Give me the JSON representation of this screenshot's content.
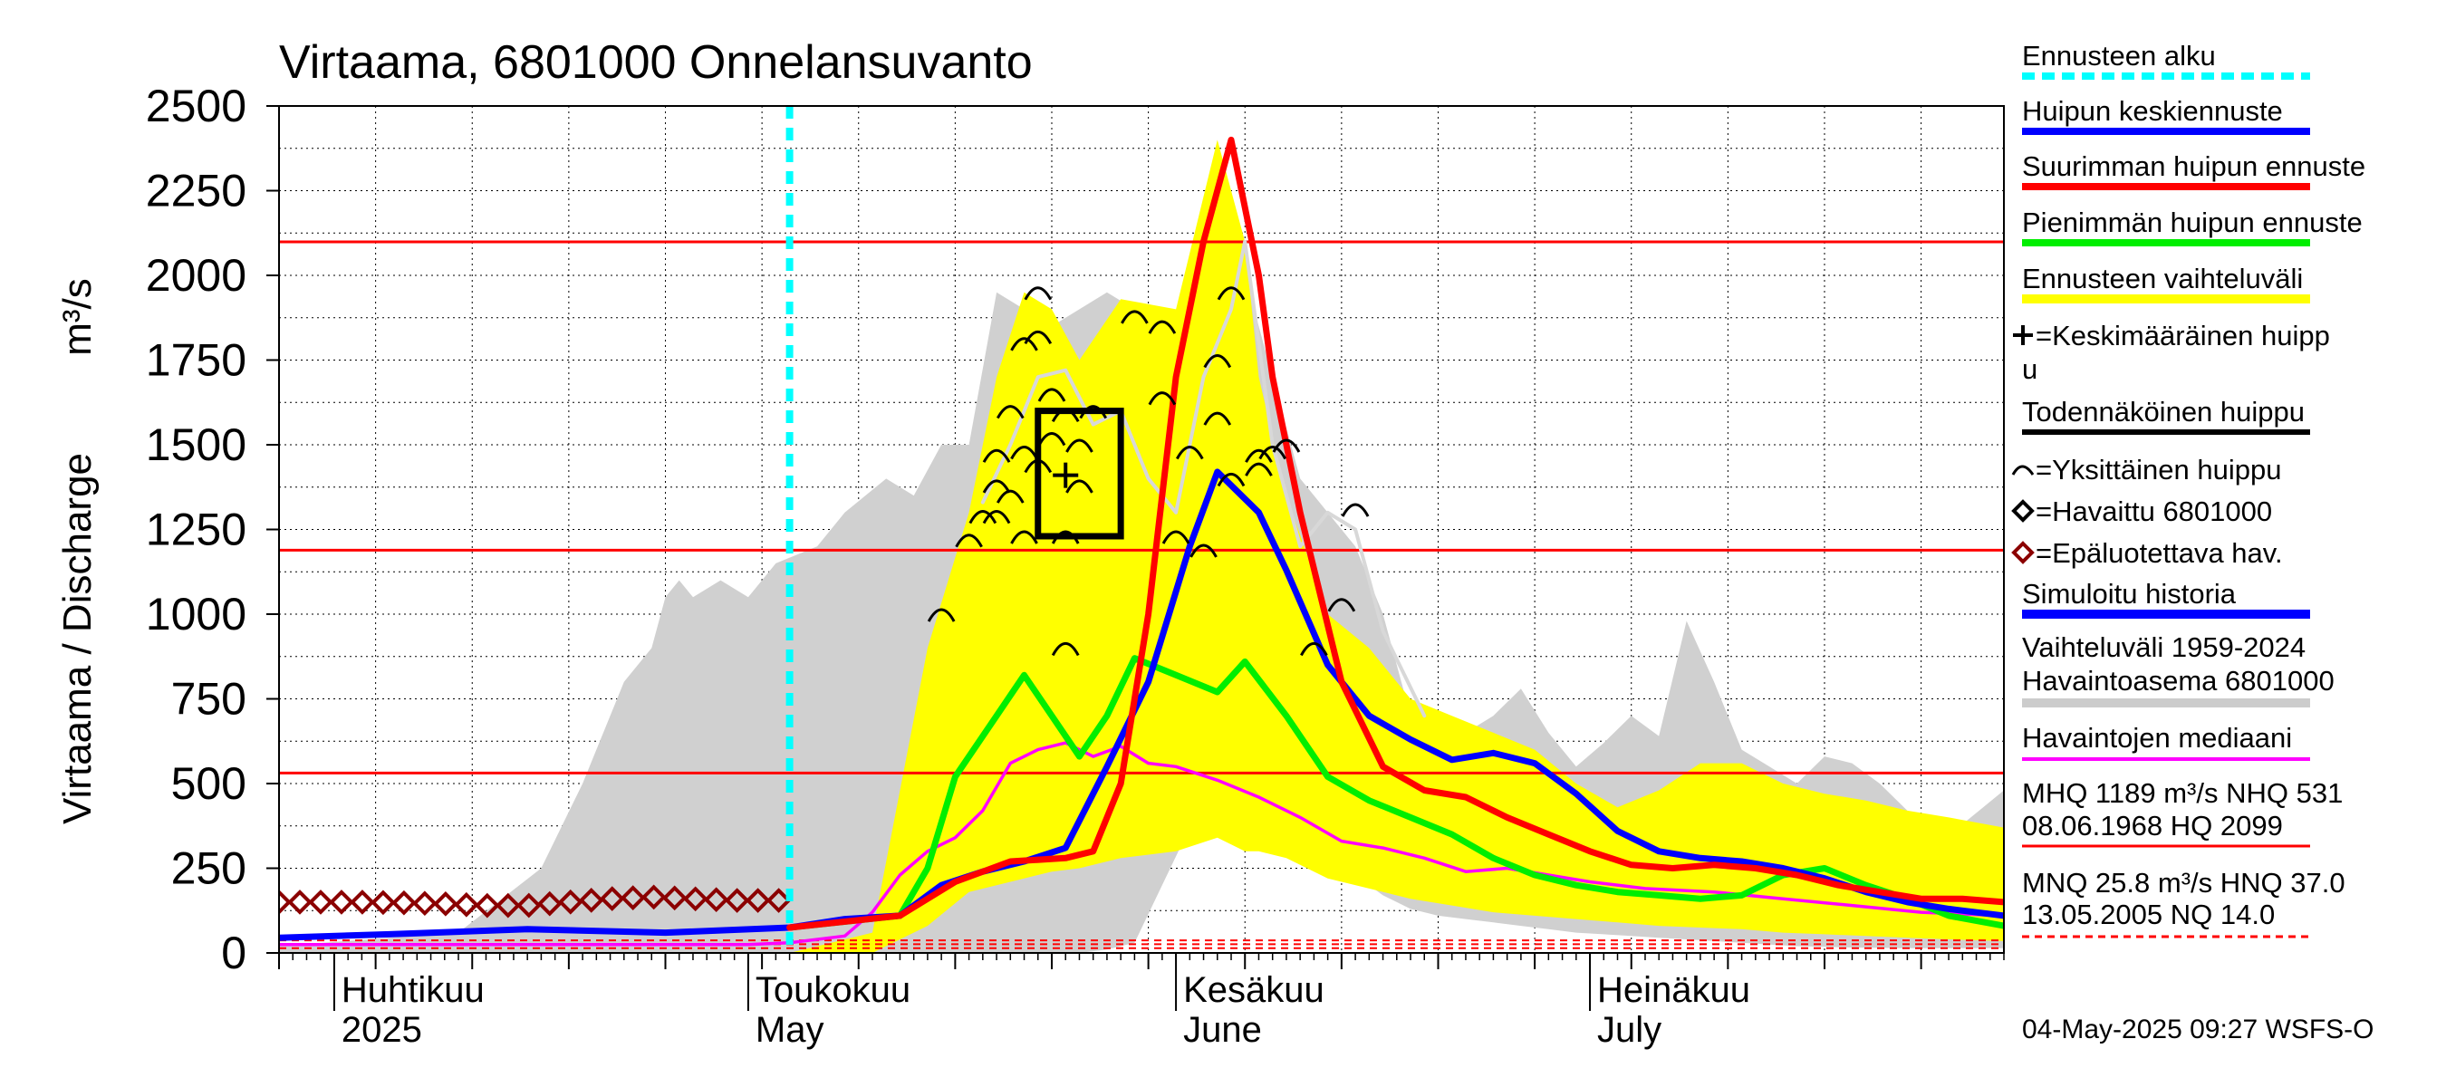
{
  "chart_data": {
    "type": "area",
    "title": "Virtaama, 6801000 Onnelansuvanto",
    "ylabel": "Virtaama / Discharge",
    "yunit": "m³/s",
    "ylim": [
      0,
      2500
    ],
    "yticks": [
      0,
      250,
      500,
      750,
      1000,
      1250,
      1500,
      1750,
      2000,
      2250,
      2500
    ],
    "xlim": [
      "2025-03-28",
      "2025-07-31"
    ],
    "x_month_ticks": [
      {
        "date": "2025-04-01",
        "label": "Huhtikuu",
        "label2": "2025"
      },
      {
        "date": "2025-05-01",
        "label": "Toukokuu",
        "label2": "May"
      },
      {
        "date": "2025-06-01",
        "label": "Kesäkuu",
        "label2": "June"
      },
      {
        "date": "2025-07-01",
        "label": "Heinäkuu",
        "label2": "July"
      }
    ],
    "grid": true,
    "forecast_start": "2025-05-04",
    "reference_lines": [
      {
        "name": "HQ",
        "value": 2099,
        "color": "#ff0000"
      },
      {
        "name": "MHQ",
        "value": 1189,
        "color": "#ff0000"
      },
      {
        "name": "NHQ",
        "value": 531,
        "color": "#ff0000"
      },
      {
        "name": "HNQ",
        "value": 37.0,
        "color": "#ff0000"
      },
      {
        "name": "MNQ",
        "value": 25.8,
        "color": "#ff0000"
      },
      {
        "name": "NQ",
        "value": 14.0,
        "color": "#ff0000"
      }
    ],
    "history_band": {
      "color": "#d0d0d0",
      "x": [
        "2025-03-28",
        "2025-04-10",
        "2025-04-16",
        "2025-04-19",
        "2025-04-22",
        "2025-04-24",
        "2025-04-25",
        "2025-04-26",
        "2025-04-27",
        "2025-04-29",
        "2025-05-01",
        "2025-05-03",
        "2025-05-06",
        "2025-05-08",
        "2025-05-11",
        "2025-05-13",
        "2025-05-15",
        "2025-05-17",
        "2025-05-19",
        "2025-05-21",
        "2025-05-23",
        "2025-05-25",
        "2025-05-27",
        "2025-05-29",
        "2025-05-31",
        "2025-06-02",
        "2025-06-04",
        "2025-06-06",
        "2025-06-08",
        "2025-06-10",
        "2025-06-12",
        "2025-06-14",
        "2025-06-16",
        "2025-06-18",
        "2025-06-20",
        "2025-06-22",
        "2025-06-24",
        "2025-06-26",
        "2025-06-28",
        "2025-06-30",
        "2025-07-02",
        "2025-07-04",
        "2025-07-06",
        "2025-07-08",
        "2025-07-10",
        "2025-07-12",
        "2025-07-14",
        "2025-07-16",
        "2025-07-18",
        "2025-07-20",
        "2025-07-22",
        "2025-07-24",
        "2025-07-26",
        "2025-07-28",
        "2025-07-31"
      ],
      "upper": [
        20,
        60,
        250,
        500,
        800,
        900,
        1050,
        1100,
        1050,
        1100,
        1050,
        1150,
        1200,
        1300,
        1400,
        1350,
        1500,
        1500,
        1950,
        1900,
        1850,
        1900,
        1950,
        1900,
        1850,
        1850,
        1900,
        2000,
        1700,
        1400,
        1300,
        1200,
        1000,
        700,
        650,
        650,
        700,
        780,
        650,
        550,
        620,
        700,
        640,
        980,
        800,
        600,
        550,
        500,
        580,
        560,
        500,
        420,
        300,
        380,
        480
      ],
      "lower": [
        0,
        0,
        0,
        0,
        0,
        0,
        0,
        0,
        0,
        0,
        0,
        0,
        0,
        0,
        0,
        0,
        0,
        0,
        0,
        0,
        0,
        0,
        10,
        30,
        200,
        370,
        450,
        500,
        480,
        380,
        300,
        230,
        170,
        130,
        110,
        100,
        90,
        80,
        70,
        60,
        55,
        50,
        45,
        40,
        35,
        30,
        25,
        20,
        18,
        16,
        15,
        14,
        14,
        14,
        14
      ]
    },
    "forecast_band": {
      "color": "#ffff00",
      "x": [
        "2025-05-04",
        "2025-05-10",
        "2025-05-14",
        "2025-05-17",
        "2025-05-19",
        "2025-05-21",
        "2025-05-23",
        "2025-05-25",
        "2025-05-28",
        "2025-06-01",
        "2025-06-04",
        "2025-06-06",
        "2025-06-07",
        "2025-06-09",
        "2025-06-12",
        "2025-06-15",
        "2025-06-18",
        "2025-06-21",
        "2025-06-24",
        "2025-06-27",
        "2025-06-30",
        "2025-07-03",
        "2025-07-06",
        "2025-07-09",
        "2025-07-12",
        "2025-07-15",
        "2025-07-18",
        "2025-07-21",
        "2025-07-24",
        "2025-07-27",
        "2025-07-31"
      ],
      "upper": [
        0,
        60,
        900,
        1300,
        1700,
        1950,
        1900,
        1750,
        1930,
        1900,
        2400,
        2100,
        1700,
        1350,
        1000,
        900,
        750,
        700,
        650,
        600,
        500,
        430,
        480,
        560,
        560,
        500,
        470,
        450,
        420,
        400,
        370
      ],
      "lower": [
        0,
        0,
        80,
        180,
        200,
        220,
        240,
        250,
        280,
        300,
        340,
        300,
        300,
        280,
        220,
        190,
        160,
        140,
        120,
        110,
        100,
        90,
        80,
        75,
        70,
        60,
        55,
        50,
        45,
        40,
        35
      ]
    },
    "series": [
      {
        "name": "Huipun keskiennuste",
        "color": "#0000ff",
        "width": 7,
        "x": [
          "2025-03-28",
          "2025-04-05",
          "2025-04-15",
          "2025-04-25",
          "2025-05-04",
          "2025-05-08",
          "2025-05-12",
          "2025-05-15",
          "2025-05-18",
          "2025-05-21",
          "2025-05-24",
          "2025-05-27",
          "2025-05-30",
          "2025-06-02",
          "2025-06-04",
          "2025-06-07",
          "2025-06-09",
          "2025-06-12",
          "2025-06-15",
          "2025-06-18",
          "2025-06-21",
          "2025-06-24",
          "2025-06-27",
          "2025-06-30",
          "2025-07-03",
          "2025-07-06",
          "2025-07-09",
          "2025-07-12",
          "2025-07-15",
          "2025-07-18",
          "2025-07-21",
          "2025-07-24",
          "2025-07-27",
          "2025-07-31"
        ],
        "y": [
          45,
          55,
          70,
          60,
          75,
          100,
          110,
          200,
          240,
          270,
          310,
          550,
          800,
          1200,
          1420,
          1300,
          1130,
          850,
          700,
          630,
          570,
          590,
          560,
          470,
          360,
          300,
          280,
          270,
          250,
          220,
          180,
          150,
          130,
          110
        ]
      },
      {
        "name": "Suurimman huipun ennuste",
        "color": "#ff0000",
        "width": 7,
        "x": [
          "2025-05-04",
          "2025-05-12",
          "2025-05-16",
          "2025-05-20",
          "2025-05-24",
          "2025-05-26",
          "2025-05-28",
          "2025-05-30",
          "2025-06-01",
          "2025-06-03",
          "2025-06-05",
          "2025-06-07",
          "2025-06-08",
          "2025-06-10",
          "2025-06-13",
          "2025-06-16",
          "2025-06-19",
          "2025-06-22",
          "2025-06-25",
          "2025-06-28",
          "2025-07-01",
          "2025-07-04",
          "2025-07-07",
          "2025-07-10",
          "2025-07-13",
          "2025-07-16",
          "2025-07-19",
          "2025-07-22",
          "2025-07-25",
          "2025-07-28",
          "2025-07-31"
        ],
        "y": [
          75,
          110,
          210,
          270,
          280,
          300,
          500,
          1000,
          1700,
          2100,
          2400,
          2000,
          1700,
          1300,
          800,
          550,
          480,
          460,
          400,
          350,
          300,
          260,
          250,
          260,
          250,
          230,
          200,
          180,
          160,
          160,
          150
        ]
      },
      {
        "name": "Pienimmän huipun ennuste",
        "color": "#00ee00",
        "width": 7,
        "x": [
          "2025-05-04",
          "2025-05-12",
          "2025-05-14",
          "2025-05-16",
          "2025-05-19",
          "2025-05-21",
          "2025-05-23",
          "2025-05-25",
          "2025-05-27",
          "2025-05-29",
          "2025-06-01",
          "2025-06-04",
          "2025-06-06",
          "2025-06-09",
          "2025-06-12",
          "2025-06-15",
          "2025-06-18",
          "2025-06-21",
          "2025-06-24",
          "2025-06-27",
          "2025-06-30",
          "2025-07-03",
          "2025-07-06",
          "2025-07-09",
          "2025-07-12",
          "2025-07-15",
          "2025-07-18",
          "2025-07-21",
          "2025-07-24",
          "2025-07-27",
          "2025-07-31"
        ],
        "y": [
          75,
          110,
          250,
          520,
          700,
          820,
          700,
          580,
          700,
          870,
          820,
          770,
          860,
          700,
          520,
          450,
          400,
          350,
          280,
          230,
          200,
          180,
          170,
          160,
          170,
          230,
          250,
          200,
          160,
          110,
          80
        ]
      },
      {
        "name": "Havaintojen mediaani",
        "color": "#ff00ff",
        "width": 3.5,
        "x": [
          "2025-03-28",
          "2025-04-20",
          "2025-05-01",
          "2025-05-04",
          "2025-05-08",
          "2025-05-10",
          "2025-05-12",
          "2025-05-14",
          "2025-05-16",
          "2025-05-18",
          "2025-05-20",
          "2025-05-22",
          "2025-05-24",
          "2025-05-26",
          "2025-05-28",
          "2025-05-30",
          "2025-06-01",
          "2025-06-04",
          "2025-06-07",
          "2025-06-10",
          "2025-06-13",
          "2025-06-16",
          "2025-06-19",
          "2025-06-22",
          "2025-06-25",
          "2025-06-28",
          "2025-07-01",
          "2025-07-05",
          "2025-07-10",
          "2025-07-15",
          "2025-07-20",
          "2025-07-25",
          "2025-07-31"
        ],
        "y": [
          25,
          25,
          25,
          30,
          50,
          120,
          230,
          300,
          340,
          420,
          560,
          600,
          620,
          580,
          610,
          560,
          550,
          510,
          460,
          400,
          330,
          310,
          280,
          240,
          250,
          230,
          210,
          190,
          180,
          160,
          140,
          120,
          110
        ]
      },
      {
        "name": "Ennusteen vaihteluväli (light)",
        "color": "#d8d8d8",
        "width": 4,
        "x": [
          "2025-05-18",
          "2025-05-20",
          "2025-05-22",
          "2025-05-24",
          "2025-05-26",
          "2025-05-28",
          "2025-05-30",
          "2025-06-01",
          "2025-06-03",
          "2025-06-05",
          "2025-06-06",
          "2025-06-08",
          "2025-06-10",
          "2025-06-12",
          "2025-06-14",
          "2025-06-16",
          "2025-06-19"
        ],
        "y": [
          1330,
          1500,
          1700,
          1720,
          1560,
          1600,
          1400,
          1300,
          1700,
          1900,
          2100,
          1500,
          1200,
          1300,
          1250,
          950,
          700
        ]
      }
    ],
    "observed": {
      "name": "Epäluotettava hav.",
      "color": "#8b0000",
      "x": [
        "2025-03-28",
        "2025-03-31",
        "2025-04-03",
        "2025-04-06",
        "2025-04-09",
        "2025-04-12",
        "2025-04-15",
        "2025-04-18",
        "2025-04-21",
        "2025-04-24",
        "2025-04-27",
        "2025-04-30",
        "2025-05-03"
      ],
      "y": [
        150,
        150,
        150,
        148,
        145,
        140,
        140,
        150,
        160,
        165,
        160,
        155,
        155
      ]
    },
    "single_peaks": {
      "name": "Yksittäinen huippu",
      "x": [
        "2025-05-15",
        "2025-05-17",
        "2025-05-18",
        "2025-05-19",
        "2025-05-19",
        "2025-05-19",
        "2025-05-20",
        "2025-05-20",
        "2025-05-21",
        "2025-05-21",
        "2025-05-21",
        "2025-05-22",
        "2025-05-22",
        "2025-05-22",
        "2025-05-23",
        "2025-05-23",
        "2025-05-24",
        "2025-05-24",
        "2025-05-24",
        "2025-05-25",
        "2025-05-25",
        "2025-05-26",
        "2025-05-29",
        "2025-05-31",
        "2025-05-31",
        "2025-06-01",
        "2025-06-02",
        "2025-06-03",
        "2025-06-04",
        "2025-06-04",
        "2025-06-05",
        "2025-06-05",
        "2025-06-07",
        "2025-06-07",
        "2025-06-08",
        "2025-06-09",
        "2025-06-11",
        "2025-06-13",
        "2025-06-14"
      ],
      "y": [
        1000,
        1220,
        1290,
        1380,
        1470,
        1290,
        1600,
        1350,
        1800,
        1480,
        1230,
        1820,
        1950,
        1440,
        1650,
        1520,
        1590,
        1230,
        900,
        1500,
        1380,
        1600,
        1880,
        1850,
        1640,
        1230,
        1480,
        1190,
        1750,
        1580,
        1950,
        1400,
        1470,
        1430,
        1480,
        1500,
        900,
        1030,
        1310
      ]
    },
    "mean_peak": {
      "name": "Keskimääräinen huippu",
      "x": "2025-05-24",
      "y": 1410
    },
    "probable_peak_box": {
      "name": "Todennäköinen huippu",
      "x0": "2025-05-22",
      "x1": "2025-05-28",
      "y0": 1230,
      "y1": 1600
    },
    "legend_position": "right"
  },
  "legend": {
    "forecast_start": {
      "label": "Ennusteen alku",
      "color": "#00ffff"
    },
    "mean_forecast": {
      "label": "Huipun keskiennuste",
      "color": "#0000ff"
    },
    "max_forecast": {
      "label": "Suurimman huipun ennuste",
      "color": "#ff0000"
    },
    "min_forecast": {
      "label": "Pienimmän huipun ennuste",
      "color": "#00ee00"
    },
    "forecast_range": {
      "label": "Ennusteen vaihteluväli",
      "color": "#ffff00"
    },
    "mean_peak": {
      "label1": "=Keskimääräinen huipp",
      "label2": "u"
    },
    "probable_peak": {
      "label": "Todennäköinen huippu",
      "color": "#000000"
    },
    "single_peak": {
      "label": "=Yksittäinen huippu"
    },
    "observed": {
      "label": "=Havaittu 6801000"
    },
    "unreliable": {
      "label": "=Epäluotettava hav.",
      "color": "#8b0000"
    },
    "simulated": {
      "label": "Simuloitu historia",
      "color": "#0000ff"
    },
    "history_range": {
      "label1": "Vaihteluväli 1959-2024",
      "label2": " Havaintoasema 6801000",
      "color": "#cccccc"
    },
    "median": {
      "label": "Havaintojen mediaani",
      "color": "#ff00ff"
    },
    "stats1": {
      "line1": "MHQ 1189 m³/s NHQ  531",
      "line2": "08.06.1968 HQ 2099",
      "color": "#ff0000"
    },
    "stats2": {
      "line1": "MNQ 25.8 m³/s HNQ 37.0",
      "line2": "13.05.2005 NQ 14.0",
      "color": "#ff0000"
    }
  },
  "timestamp": "04-May-2025 09:27 WSFS-O"
}
